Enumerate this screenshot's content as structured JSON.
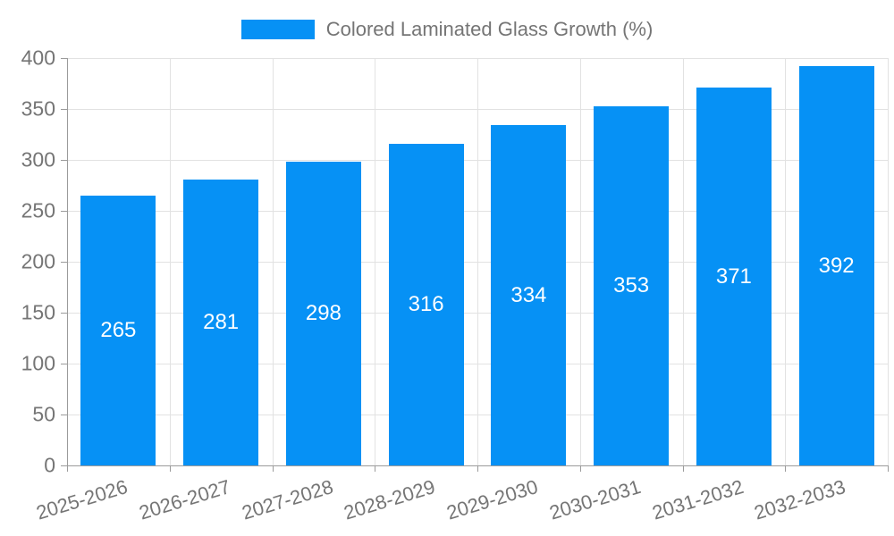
{
  "legend": {
    "label": "Colored Laminated Glass Growth (%)"
  },
  "chart_data": {
    "type": "bar",
    "title": "Colored Laminated Glass Growth (%)",
    "categories": [
      "2025-2026",
      "2026-2027",
      "2027-2028",
      "2028-2029",
      "2029-2030",
      "2030-2031",
      "2031-2032",
      "2032-2033"
    ],
    "values": [
      265,
      281,
      298,
      316,
      334,
      353,
      371,
      392
    ],
    "xlabel": "",
    "ylabel": "",
    "ylim": [
      0,
      400
    ],
    "ytick_step": 50,
    "ytick_labels": [
      "0",
      "50",
      "100",
      "150",
      "200",
      "250",
      "300",
      "350",
      "400"
    ],
    "grid": true,
    "legend_position": "top-center",
    "colors": {
      "bar": "#0691f5",
      "value_label": "#ffffff",
      "axis_text": "#757575",
      "gridline": "#e2e2e2",
      "axis_line": "#9b9b9b",
      "background": "#ffffff"
    }
  }
}
